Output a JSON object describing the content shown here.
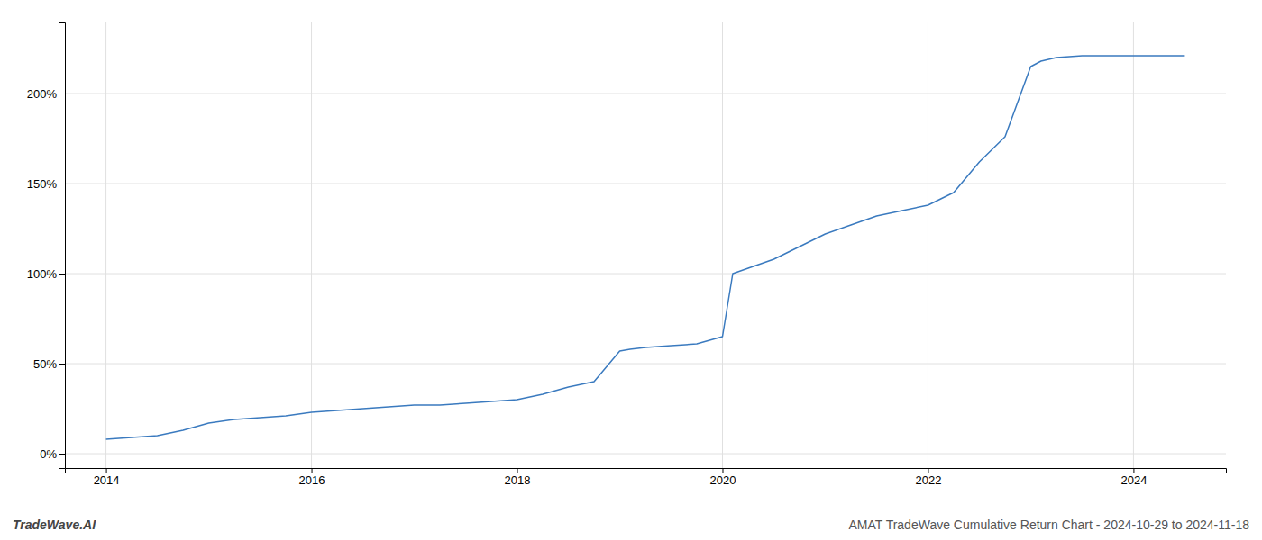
{
  "chart_data": {
    "type": "line",
    "title": "AMAT TradeWave Cumulative Return Chart - 2024-10-29 to 2024-11-18",
    "annotations": [
      "TradeWave.AI"
    ],
    "color": "#3a7abf",
    "x": [
      2014.0,
      2014.25,
      2014.5,
      2014.75,
      2015.0,
      2015.25,
      2015.5,
      2015.75,
      2016.0,
      2016.25,
      2016.5,
      2016.75,
      2017.0,
      2017.25,
      2017.5,
      2017.75,
      2018.0,
      2018.25,
      2018.5,
      2018.75,
      2019.0,
      2019.1,
      2019.25,
      2019.5,
      2019.75,
      2020.0,
      2020.1,
      2020.25,
      2020.5,
      2020.75,
      2021.0,
      2021.25,
      2021.5,
      2021.75,
      2022.0,
      2022.25,
      2022.5,
      2022.75,
      2023.0,
      2023.1,
      2023.25,
      2023.5,
      2023.75,
      2024.0,
      2024.5
    ],
    "values": [
      8,
      9,
      10,
      13,
      17,
      19,
      20,
      21,
      23,
      24,
      25,
      26,
      27,
      27,
      28,
      29,
      30,
      33,
      37,
      40,
      57,
      58,
      59,
      60,
      61,
      65,
      100,
      103,
      108,
      115,
      122,
      127,
      132,
      135,
      138,
      145,
      162,
      176,
      215,
      218,
      220,
      221,
      221,
      221,
      221
    ],
    "xlim": [
      2013.6,
      2024.9
    ],
    "ylim": [
      -8,
      240
    ],
    "xticks": [
      2014,
      2016,
      2018,
      2020,
      2022,
      2024
    ],
    "yticks": [
      {
        "value": 0,
        "label": "0%"
      },
      {
        "value": 50,
        "label": "50%"
      },
      {
        "value": 100,
        "label": "100%"
      },
      {
        "value": 150,
        "label": "150%"
      },
      {
        "value": 200,
        "label": "200%"
      }
    ],
    "grid": true
  }
}
